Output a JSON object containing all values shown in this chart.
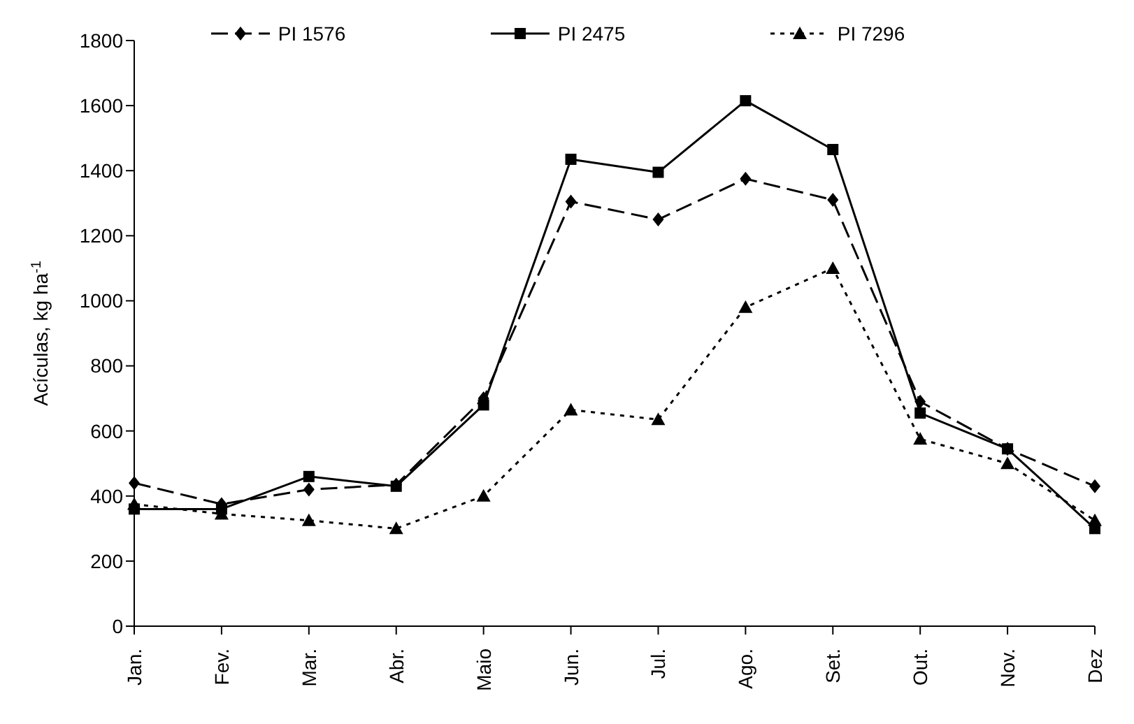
{
  "chart_data": {
    "type": "line",
    "ylabel": "Acículas, kg ha$^{-1}$",
    "categories": [
      "Jan.",
      "Fev.",
      "Mar.",
      "Abr.",
      "Maio",
      "Jun.",
      "Jul.",
      "Ago.",
      "Set.",
      "Out.",
      "Nov.",
      "Dez"
    ],
    "series": [
      {
        "name": "PI 1576",
        "color": "#000000",
        "marker": "diamond",
        "line_style": "dashed",
        "values": [
          440,
          375,
          420,
          435,
          700,
          1305,
          1250,
          1375,
          1310,
          690,
          545,
          430
        ]
      },
      {
        "name": "PI 2475",
        "color": "#000000",
        "marker": "square",
        "line_style": "solid",
        "values": [
          360,
          360,
          460,
          430,
          680,
          1435,
          1395,
          1615,
          1465,
          655,
          545,
          300
        ]
      },
      {
        "name": "PI 7296",
        "color": "#000000",
        "marker": "triangle",
        "line_style": "dotted",
        "values": [
          375,
          345,
          325,
          300,
          400,
          665,
          635,
          980,
          1100,
          575,
          500,
          325
        ]
      }
    ],
    "ylim": [
      0,
      1800
    ],
    "yticks": [
      0,
      200,
      400,
      600,
      800,
      1000,
      1200,
      1400,
      1600,
      1800
    ],
    "grid": false,
    "legend": "top"
  }
}
